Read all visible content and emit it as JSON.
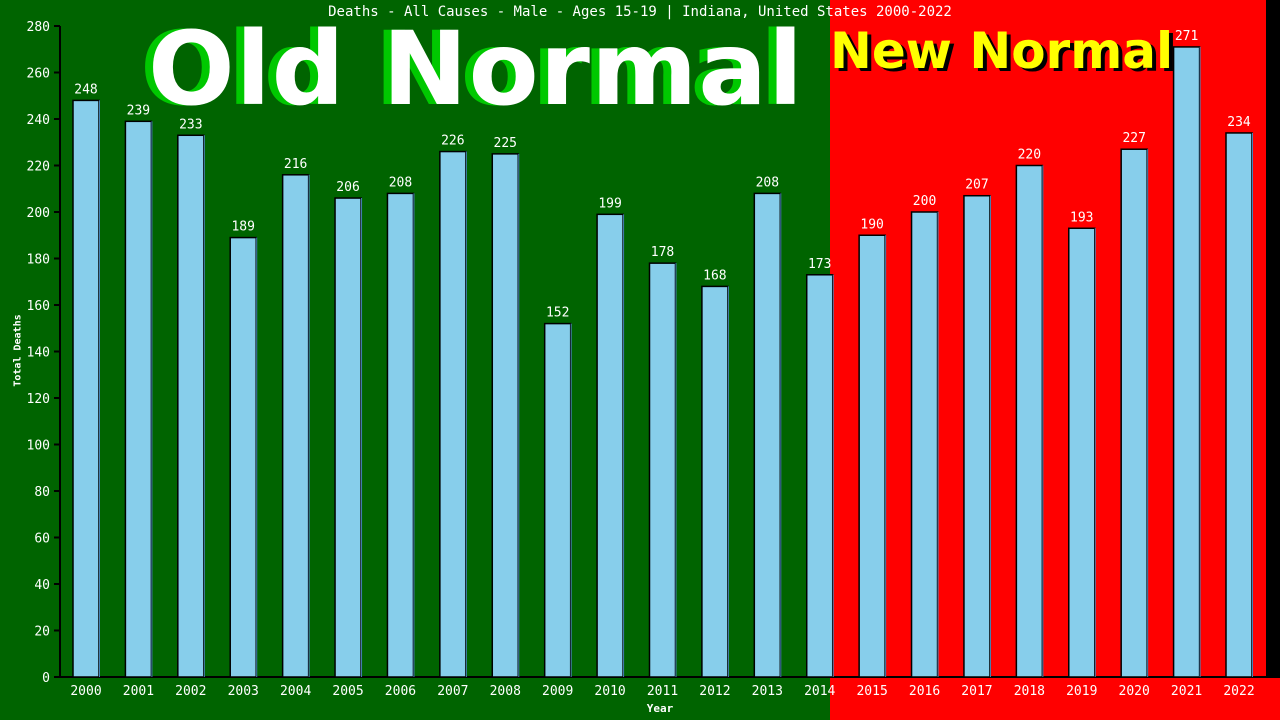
{
  "chart_data": {
    "type": "bar",
    "title": "Deaths - All Causes - Male - Ages 15-19 | Indiana, United States 2000-2022",
    "xlabel": "Year",
    "ylabel": "Total Deaths",
    "ylim": [
      0,
      280
    ],
    "yticks": [
      0,
      20,
      40,
      60,
      80,
      100,
      120,
      140,
      160,
      180,
      200,
      220,
      240,
      260,
      280
    ],
    "categories": [
      "2000",
      "2001",
      "2002",
      "2003",
      "2004",
      "2005",
      "2006",
      "2007",
      "2008",
      "2009",
      "2010",
      "2011",
      "2012",
      "2013",
      "2014",
      "2015",
      "2016",
      "2017",
      "2018",
      "2019",
      "2020",
      "2021",
      "2022"
    ],
    "values": [
      248,
      239,
      233,
      189,
      216,
      206,
      208,
      226,
      225,
      152,
      199,
      178,
      168,
      208,
      173,
      190,
      200,
      207,
      220,
      193,
      227,
      271,
      234
    ],
    "grid": false,
    "bar_color": "#87ceeb",
    "annotations": {
      "old_label": "Old Normal",
      "new_label": "New Normal",
      "old_color": "#006400",
      "new_color": "#ff0000"
    }
  }
}
